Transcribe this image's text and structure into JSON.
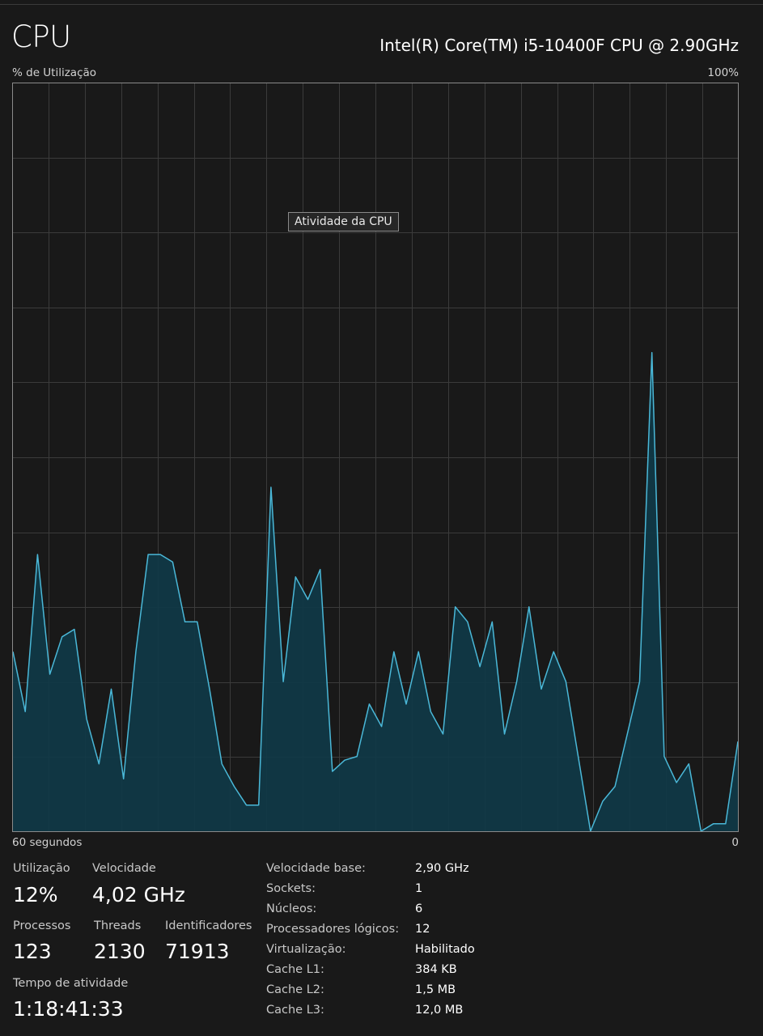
{
  "header": {
    "title": "CPU",
    "cpu_model": "Intel(R) Core(TM) i5-10400F CPU @ 2.90GHz"
  },
  "graph": {
    "y_axis_label": "% de Utilização",
    "y_max_label": "100%",
    "x_axis_label": "60 segundos",
    "y_min_label": "0",
    "tooltip": "Atividade da CPU",
    "colors": {
      "line": "#4ab8d8",
      "fill": "#0f3a48",
      "grid": "#3b3b3b",
      "border": "#8a8a8a"
    }
  },
  "chart_data": {
    "type": "area",
    "ylim": [
      0,
      100
    ],
    "x_seconds_range": [
      60,
      0
    ],
    "series": [
      {
        "values": [
          24,
          16,
          37,
          21,
          26,
          27,
          15,
          9,
          19,
          7,
          24,
          37,
          37,
          36,
          28,
          28,
          19,
          9,
          6,
          3.5,
          3.5,
          46,
          20,
          34,
          31,
          35,
          8,
          9.5,
          10,
          17,
          14,
          24,
          17,
          24,
          16,
          13,
          30,
          28,
          22,
          28,
          13,
          20,
          30,
          19,
          24,
          20,
          10,
          0,
          4,
          6,
          13,
          20,
          64,
          10,
          6.5,
          9,
          0,
          1,
          1,
          12
        ]
      }
    ]
  },
  "stats": {
    "utilization": {
      "label": "Utilização",
      "value": "12%"
    },
    "speed": {
      "label": "Velocidade",
      "value": "4,02 GHz"
    },
    "processes": {
      "label": "Processos",
      "value": "123"
    },
    "threads": {
      "label": "Threads",
      "value": "2130"
    },
    "handles": {
      "label": "Identificadores",
      "value": "71913"
    },
    "uptime": {
      "label": "Tempo de atividade",
      "value": "1:18:41:33"
    }
  },
  "details": [
    {
      "key": "Velocidade base:",
      "value": "2,90 GHz"
    },
    {
      "key": "Sockets:",
      "value": "1"
    },
    {
      "key": "Núcleos:",
      "value": "6"
    },
    {
      "key": "Processadores lógicos:",
      "value": "12"
    },
    {
      "key": "Virtualização:",
      "value": "Habilitado"
    },
    {
      "key": "Cache L1:",
      "value": "384 KB"
    },
    {
      "key": "Cache L2:",
      "value": "1,5 MB"
    },
    {
      "key": "Cache L3:",
      "value": "12,0 MB"
    }
  ]
}
